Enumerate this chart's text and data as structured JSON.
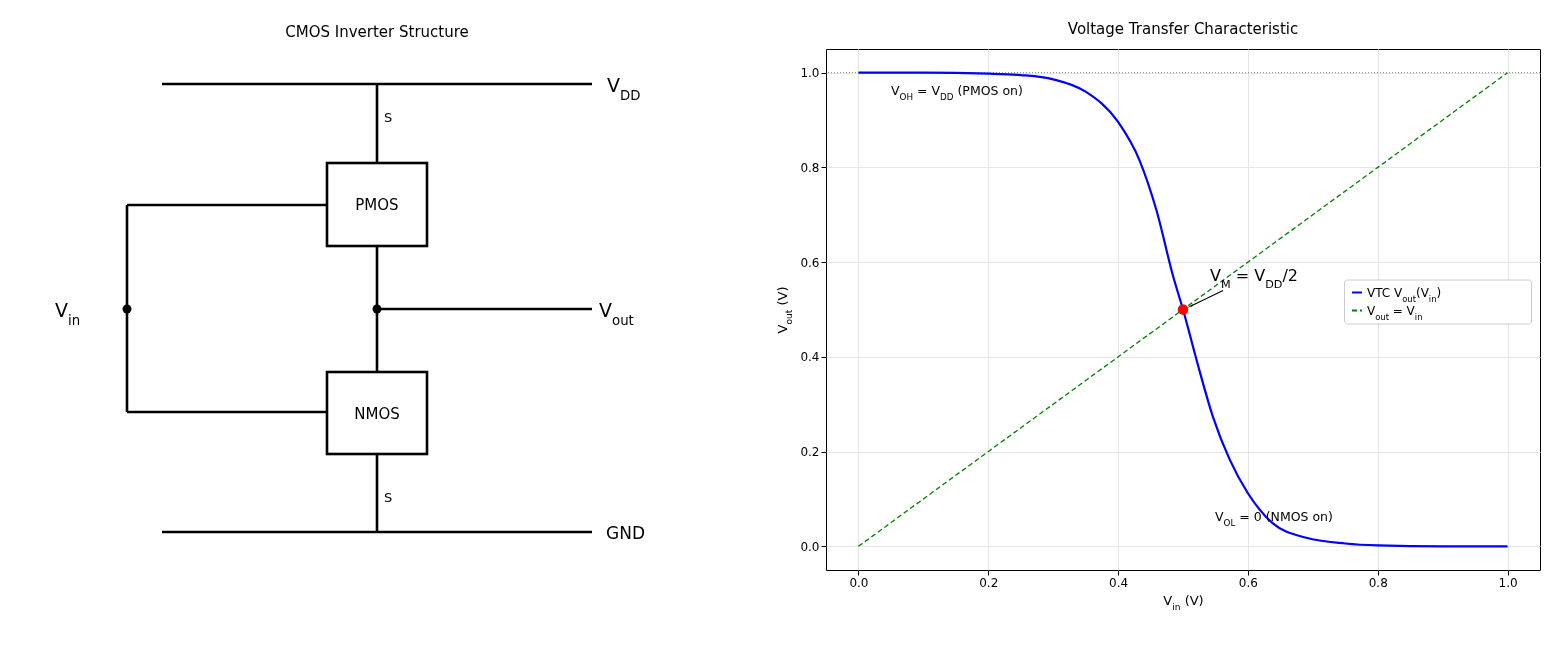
{
  "chart_data": [
    {
      "type": "other",
      "title": "CMOS Inverter Structure",
      "annotations": [
        "V$_{DD}$",
        "S",
        "PMOS",
        "V$_{in}$",
        "V$_{out}$",
        "NMOS",
        "S",
        "GND"
      ]
    },
    {
      "type": "line",
      "title": "Voltage Transfer Characteristic",
      "xlabel": "V$_{in}$  (V)",
      "ylabel": "V$_{out}$  (V)",
      "xlim": [
        -0.05,
        1.05
      ],
      "ylim": [
        -0.05,
        1.05
      ],
      "xticks": [
        {
          "value": 0,
          "label": "0.0"
        },
        0.2,
        0.4,
        0.6,
        0.8,
        {
          "value": 1,
          "label": "1.0"
        }
      ],
      "yticks": [
        {
          "value": 0,
          "label": "0.0"
        },
        0.2,
        0.4,
        0.6,
        0.8,
        {
          "value": 1,
          "label": "1.0"
        }
      ],
      "grid": true,
      "legend": "right",
      "series": [
        {
          "name": "VTC V$_{out}$(V$_{in}$)",
          "color": "#0000ff",
          "x": [
            0,
            0.1,
            0.2,
            0.25,
            0.3,
            0.35,
            0.4,
            0.433,
            0.459,
            0.485,
            0.5,
            0.521,
            0.546,
            0.572,
            0.6,
            0.638,
            0.69,
            0.75,
            0.8,
            0.9,
            1.0
          ],
          "values": [
            1.0,
            1.0,
            0.998,
            0.995,
            0.986,
            0.96,
            0.896,
            0.815,
            0.71,
            0.569,
            0.5,
            0.393,
            0.274,
            0.183,
            0.112,
            0.049,
            0.018,
            0.006,
            0.002,
            0,
            0
          ]
        },
        {
          "name": "V$_{out}$ = V$_{in}$",
          "color": "#008000",
          "line_style": "dashed",
          "x": [
            0,
            1
          ],
          "values": [
            0,
            1
          ]
        },
        {
          "type": "scatter",
          "color": "#ff0000",
          "marker": "circle",
          "x": [
            0.5
          ],
          "values": [
            0.5
          ]
        }
      ],
      "ref_lines": [
        {
          "axis": "y",
          "value": 1,
          "color": "#808080",
          "line_style": "dotted"
        }
      ],
      "annotations": [
        "V$_{OH}$ = V$_{DD}$ (PMOS on)",
        "V$_{OL}$ = 0 (NMOS on)",
        {
          "text": "V$_{M}$ = V$_{DD}$/2",
          "x": 0.5,
          "y": 0.5
        }
      ]
    }
  ]
}
